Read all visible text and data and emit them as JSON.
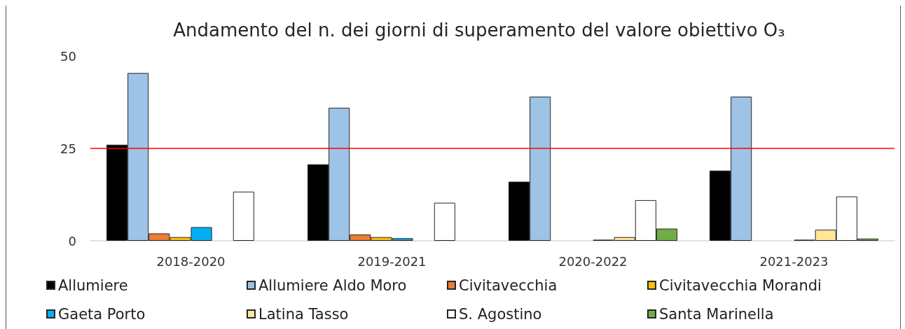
{
  "chart_data": {
    "type": "bar",
    "title": "Andamento del n. dei giorni di superamento del valore obiettivo O₃",
    "categories": [
      "2018-2020",
      "2019-2021",
      "2020-2022",
      "2021-2023"
    ],
    "series": [
      {
        "name": "Allumiere",
        "color": "#000000",
        "values": [
          26,
          20.7,
          16,
          19
        ]
      },
      {
        "name": "Allumiere Aldo Moro",
        "color": "#9dc3e6",
        "values": [
          45.4,
          36,
          39,
          39
        ]
      },
      {
        "name": "Civitavecchia",
        "color": "#ed7d31",
        "values": [
          2,
          1.7,
          null,
          null
        ]
      },
      {
        "name": "Civitavecchia Morandi",
        "color": "#ffc000",
        "values": [
          1,
          1,
          null,
          null
        ]
      },
      {
        "name": "Gaeta Porto",
        "color": "#00b0f0",
        "values": [
          3.7,
          0.7,
          0.3,
          0.3
        ]
      },
      {
        "name": "Latina Tasso",
        "color": "#ffe699",
        "values": [
          null,
          null,
          1,
          3
        ]
      },
      {
        "name": "S. Agostino",
        "color": "#ffffff",
        "values": [
          13.3,
          10.3,
          11,
          12
        ]
      },
      {
        "name": "Santa Marinella",
        "color": "#70ad47",
        "values": [
          null,
          null,
          3.3,
          0.6
        ]
      }
    ],
    "ylim": [
      0,
      50
    ],
    "yticks": [
      0,
      25,
      50
    ],
    "legend": "bottom",
    "ref_lines": [
      {
        "axis": "y",
        "value": 25,
        "color": "#ff0000"
      }
    ]
  }
}
